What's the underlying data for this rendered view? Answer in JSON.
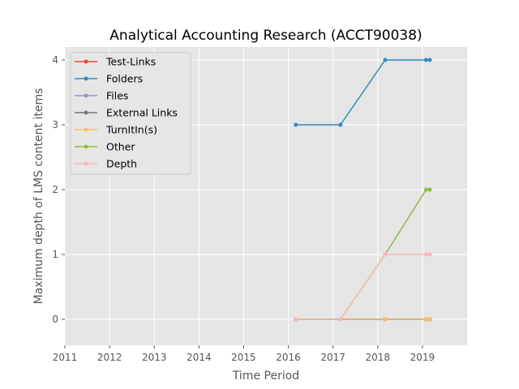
{
  "chart_data": {
    "type": "line",
    "title": "Analytical Accounting Research (ACCT90038)",
    "xlabel": "Time Period",
    "ylabel": "Maximum depth of LMS content items",
    "xlim": [
      2011,
      2020
    ],
    "ylim": [
      -0.4,
      4.2
    ],
    "x_ticks": [
      "2011",
      "2012",
      "2013",
      "2014",
      "2015",
      "2016",
      "2017",
      "2018",
      "2019"
    ],
    "y_ticks": [
      "0",
      "1",
      "2",
      "3",
      "4"
    ],
    "grid": true,
    "legend_position": "top-left",
    "x": [
      "2016-03",
      "2017-03",
      "2018-03",
      "2019-02",
      "2019-03"
    ],
    "series": [
      {
        "name": "Test-Links",
        "color": "#e24a33",
        "values": [
          0,
          0,
          0,
          0,
          0
        ]
      },
      {
        "name": "Folders",
        "color": "#348abd",
        "values": [
          3,
          3,
          4,
          4,
          4
        ]
      },
      {
        "name": "Files",
        "color": "#988ed5",
        "values": [
          0,
          0,
          0,
          0,
          0
        ]
      },
      {
        "name": "External Links",
        "color": "#777777",
        "values": [
          0,
          0,
          0,
          0,
          0
        ]
      },
      {
        "name": "TurnItIn(s)",
        "color": "#fbc15e",
        "values": [
          0,
          0,
          0,
          0,
          0
        ]
      },
      {
        "name": "Other",
        "color": "#8eba42",
        "values": [
          0,
          0,
          1,
          2,
          2
        ]
      },
      {
        "name": "Depth",
        "color": "#ffb5b8",
        "values": [
          0,
          0,
          1,
          1,
          1
        ]
      }
    ]
  }
}
